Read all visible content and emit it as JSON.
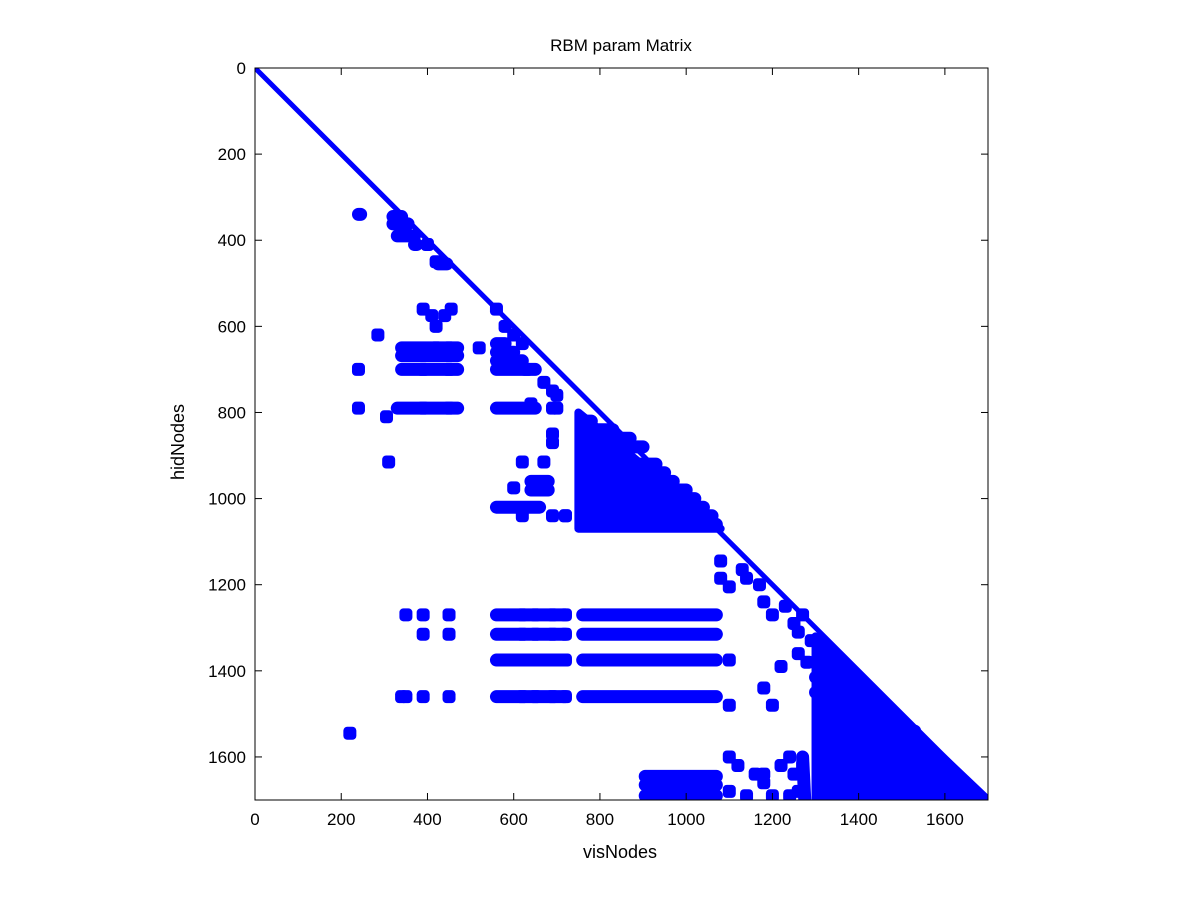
{
  "chart_data": {
    "type": "scatter",
    "subtype": "sparsity-pattern",
    "title": "RBM param Matrix",
    "xlabel": "visNodes",
    "ylabel": "hidNodes",
    "xlim": [
      0,
      1700
    ],
    "ylim": [
      0,
      1700
    ],
    "y_axis_inverted": true,
    "x_ticks": [
      0,
      200,
      400,
      600,
      800,
      1000,
      1200,
      1400,
      1600
    ],
    "x_tick_labels": [
      "0",
      "200",
      "400",
      "600",
      "800",
      "1000",
      "1200",
      "1400",
      "1600"
    ],
    "y_ticks": [
      0,
      200,
      400,
      600,
      800,
      1000,
      1200,
      1400,
      1600
    ],
    "y_tick_labels": [
      "0",
      "200",
      "400",
      "600",
      "800",
      "1000",
      "1200",
      "1400",
      "1600"
    ],
    "grid": false,
    "legend": "none",
    "marker_color": "#0000ff",
    "diagonal": {
      "from": [
        0,
        0
      ],
      "to": [
        1700,
        1700
      ]
    },
    "filled_triangles": [
      [
        [
          750,
          800
        ],
        [
          1080,
          1070
        ],
        [
          750,
          1070
        ]
      ],
      [
        [
          1300,
          1320
        ],
        [
          1700,
          1700
        ],
        [
          1300,
          1700
        ]
      ]
    ],
    "segments": [
      [
        240,
        340,
        245,
        340
      ],
      [
        320,
        345,
        340,
        345
      ],
      [
        320,
        362,
        355,
        362
      ],
      [
        330,
        390,
        370,
        390
      ],
      [
        370,
        410,
        375,
        410
      ],
      [
        425,
        455,
        445,
        455
      ],
      [
        340,
        650,
        470,
        650
      ],
      [
        340,
        668,
        470,
        668
      ],
      [
        340,
        700,
        470,
        700
      ],
      [
        330,
        790,
        470,
        790
      ],
      [
        560,
        700,
        650,
        700
      ],
      [
        560,
        790,
        650,
        790
      ],
      [
        560,
        640,
        580,
        640
      ],
      [
        560,
        660,
        600,
        660
      ],
      [
        560,
        680,
        620,
        680
      ],
      [
        760,
        820,
        780,
        820
      ],
      [
        770,
        840,
        830,
        840
      ],
      [
        770,
        860,
        870,
        860
      ],
      [
        770,
        880,
        900,
        880
      ],
      [
        770,
        920,
        930,
        920
      ],
      [
        770,
        940,
        950,
        940
      ],
      [
        770,
        960,
        970,
        960
      ],
      [
        770,
        980,
        1000,
        980
      ],
      [
        770,
        1000,
        1020,
        1000
      ],
      [
        770,
        1020,
        1040,
        1020
      ],
      [
        770,
        1040,
        1060,
        1040
      ],
      [
        770,
        1060,
        1070,
        1060
      ],
      [
        560,
        1020,
        660,
        1020
      ],
      [
        640,
        960,
        680,
        960
      ],
      [
        640,
        980,
        680,
        980
      ],
      [
        560,
        1270,
        720,
        1270
      ],
      [
        760,
        1270,
        1070,
        1270
      ],
      [
        560,
        1315,
        720,
        1315
      ],
      [
        760,
        1315,
        1070,
        1315
      ],
      [
        560,
        1375,
        720,
        1375
      ],
      [
        760,
        1375,
        1070,
        1375
      ],
      [
        560,
        1460,
        720,
        1460
      ],
      [
        760,
        1460,
        1070,
        1460
      ],
      [
        905,
        1645,
        1070,
        1645
      ],
      [
        905,
        1665,
        1070,
        1665
      ],
      [
        905,
        1690,
        1070,
        1690
      ],
      [
        1330,
        1370,
        1345,
        1370
      ],
      [
        1330,
        1390,
        1345,
        1390
      ],
      [
        1300,
        1415,
        1360,
        1415
      ],
      [
        1300,
        1450,
        1360,
        1450
      ],
      [
        1320,
        1600,
        1530,
        1600
      ],
      [
        1320,
        1640,
        1530,
        1640
      ],
      [
        1320,
        1665,
        1530,
        1665
      ],
      [
        1320,
        1690,
        1530,
        1690
      ],
      [
        1400,
        1540,
        1530,
        1540
      ],
      [
        1400,
        1560,
        1530,
        1560
      ],
      [
        1270,
        1600,
        1275,
        1700
      ],
      [
        1310,
        1600,
        1310,
        1700
      ],
      [
        1550,
        1600,
        1555,
        1700
      ],
      [
        1570,
        1620,
        1570,
        1700
      ]
    ],
    "points": [
      [
        220,
        1545
      ],
      [
        310,
        915
      ],
      [
        305,
        810
      ],
      [
        285,
        620
      ],
      [
        240,
        700
      ],
      [
        240,
        790
      ],
      [
        390,
        560
      ],
      [
        410,
        575
      ],
      [
        420,
        600
      ],
      [
        440,
        575
      ],
      [
        455,
        560
      ],
      [
        390,
        700
      ],
      [
        390,
        790
      ],
      [
        420,
        650
      ],
      [
        450,
        650
      ],
      [
        450,
        700
      ],
      [
        450,
        790
      ],
      [
        400,
        410
      ],
      [
        420,
        450
      ],
      [
        520,
        650
      ],
      [
        560,
        560
      ],
      [
        580,
        600
      ],
      [
        600,
        620
      ],
      [
        620,
        640
      ],
      [
        630,
        700
      ],
      [
        670,
        730
      ],
      [
        690,
        750
      ],
      [
        700,
        760
      ],
      [
        690,
        790
      ],
      [
        700,
        790
      ],
      [
        690,
        850
      ],
      [
        690,
        870
      ],
      [
        640,
        780
      ],
      [
        620,
        915
      ],
      [
        670,
        915
      ],
      [
        600,
        975
      ],
      [
        620,
        1040
      ],
      [
        690,
        1040
      ],
      [
        720,
        1040
      ],
      [
        350,
        1270
      ],
      [
        390,
        1270
      ],
      [
        450,
        1270
      ],
      [
        390,
        1315
      ],
      [
        450,
        1315
      ],
      [
        350,
        1460
      ],
      [
        390,
        1460
      ],
      [
        450,
        1460
      ],
      [
        620,
        1270
      ],
      [
        650,
        1270
      ],
      [
        690,
        1270
      ],
      [
        720,
        1270
      ],
      [
        620,
        1315
      ],
      [
        650,
        1315
      ],
      [
        690,
        1315
      ],
      [
        720,
        1315
      ],
      [
        620,
        1375
      ],
      [
        650,
        1375
      ],
      [
        690,
        1375
      ],
      [
        720,
        1375
      ],
      [
        1100,
        1375
      ],
      [
        620,
        1460
      ],
      [
        650,
        1460
      ],
      [
        690,
        1460
      ],
      [
        720,
        1460
      ],
      [
        1100,
        1480
      ],
      [
        1080,
        1145
      ],
      [
        1080,
        1185
      ],
      [
        1100,
        1205
      ],
      [
        1130,
        1165
      ],
      [
        1140,
        1185
      ],
      [
        1170,
        1200
      ],
      [
        1180,
        1240
      ],
      [
        1200,
        1270
      ],
      [
        1230,
        1250
      ],
      [
        1250,
        1290
      ],
      [
        1270,
        1270
      ],
      [
        1260,
        1310
      ],
      [
        1290,
        1330
      ],
      [
        1220,
        1390
      ],
      [
        1180,
        1440
      ],
      [
        1200,
        1480
      ],
      [
        1260,
        1360
      ],
      [
        1280,
        1380
      ],
      [
        1300,
        1380
      ],
      [
        1100,
        1600
      ],
      [
        1120,
        1620
      ],
      [
        1160,
        1640
      ],
      [
        1180,
        1640
      ],
      [
        1220,
        1620
      ],
      [
        1240,
        1600
      ],
      [
        1250,
        1640
      ],
      [
        1270,
        1620
      ],
      [
        1100,
        1680
      ],
      [
        1140,
        1690
      ],
      [
        1180,
        1660
      ],
      [
        1200,
        1690
      ],
      [
        1240,
        1690
      ],
      [
        1260,
        1680
      ],
      [
        340,
        1460
      ],
      [
        720,
        1040
      ]
    ]
  }
}
